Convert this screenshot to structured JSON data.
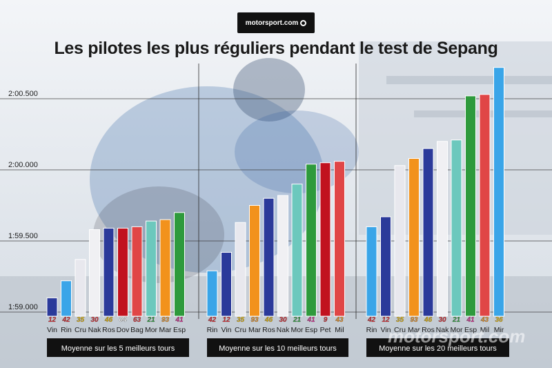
{
  "brand": {
    "logo_text": "motorsport.com",
    "watermark": "motorsport.com"
  },
  "chart_data": {
    "type": "bar",
    "title": "Les pilotes les plus réguliers pendant le test de Sepang",
    "xlabel": "",
    "ylabel": "",
    "y_unit": "seconds",
    "ylim": [
      119.0,
      120.5
    ],
    "y_ticks": [
      {
        "value": 119.0,
        "label": "1:59.000"
      },
      {
        "value": 119.5,
        "label": "1:59.500"
      },
      {
        "value": 120.0,
        "label": "2:00.000"
      },
      {
        "value": 120.5,
        "label": "2:00.500"
      }
    ],
    "groups": [
      {
        "caption": "Moyenne sur les 5 meilleurs tours",
        "bars": [
          {
            "label": "Vin",
            "number": "12",
            "value": 119.1,
            "color": "#2b3a9a",
            "num_color": "#d8262c"
          },
          {
            "label": "Rin",
            "number": "42",
            "value": 119.22,
            "color": "#3aa5e8",
            "num_color": "#d8262c"
          },
          {
            "label": "Cru",
            "number": "35",
            "value": 119.37,
            "color": "#e8e8ee",
            "num_color": "#e6b400"
          },
          {
            "label": "Nak",
            "number": "30",
            "value": 119.58,
            "color": "#f0f0f3",
            "num_color": "#d8262c"
          },
          {
            "label": "Ros",
            "number": "46",
            "value": 119.59,
            "color": "#2b3a9a",
            "num_color": "#e6b400"
          },
          {
            "label": "Dov",
            "number": "04",
            "value": 119.59,
            "color": "#c1121f",
            "num_color": "#ffffff"
          },
          {
            "label": "Bag",
            "number": "63",
            "value": 119.6,
            "color": "#e04646",
            "num_color": "#d8262c"
          },
          {
            "label": "Mor",
            "number": "21",
            "value": 119.64,
            "color": "#6cc8bd",
            "num_color": "#2e9a3c"
          },
          {
            "label": "Mar",
            "number": "93",
            "value": 119.65,
            "color": "#f2921c",
            "num_color": "#f2921c"
          },
          {
            "label": "Esp",
            "number": "41",
            "value": 119.7,
            "color": "#2e9a3c",
            "num_color": "#d42b8e"
          }
        ]
      },
      {
        "caption": "Moyenne sur les 10 meilleurs tours",
        "bars": [
          {
            "label": "Rin",
            "number": "42",
            "value": 119.29,
            "color": "#3aa5e8",
            "num_color": "#d8262c"
          },
          {
            "label": "Vin",
            "number": "12",
            "value": 119.42,
            "color": "#2b3a9a",
            "num_color": "#d8262c"
          },
          {
            "label": "Cru",
            "number": "35",
            "value": 119.63,
            "color": "#e8e8ee",
            "num_color": "#e6b400"
          },
          {
            "label": "Mar",
            "number": "93",
            "value": 119.75,
            "color": "#f2921c",
            "num_color": "#f2921c"
          },
          {
            "label": "Ros",
            "number": "46",
            "value": 119.8,
            "color": "#2b3a9a",
            "num_color": "#e6b400"
          },
          {
            "label": "Nak",
            "number": "30",
            "value": 119.82,
            "color": "#f0f0f3",
            "num_color": "#d8262c"
          },
          {
            "label": "Mor",
            "number": "21",
            "value": 119.9,
            "color": "#6cc8bd",
            "num_color": "#2e9a3c"
          },
          {
            "label": "Esp",
            "number": "41",
            "value": 120.04,
            "color": "#2e9a3c",
            "num_color": "#d42b8e"
          },
          {
            "label": "Pet",
            "number": "9",
            "value": 120.05,
            "color": "#c1121f",
            "num_color": "#d8262c"
          },
          {
            "label": "Mil",
            "number": "43",
            "value": 120.06,
            "color": "#e04646",
            "num_color": "#f2921c"
          }
        ]
      },
      {
        "caption": "Moyenne sur les 20 meilleurs tours",
        "bars": [
          {
            "label": "Rin",
            "number": "42",
            "value": 119.6,
            "color": "#3aa5e8",
            "num_color": "#d8262c"
          },
          {
            "label": "Vin",
            "number": "12",
            "value": 119.67,
            "color": "#2b3a9a",
            "num_color": "#d8262c"
          },
          {
            "label": "Cru",
            "number": "35",
            "value": 120.03,
            "color": "#e8e8ee",
            "num_color": "#e6b400"
          },
          {
            "label": "Mar",
            "number": "93",
            "value": 120.08,
            "color": "#f2921c",
            "num_color": "#f2921c"
          },
          {
            "label": "Ros",
            "number": "46",
            "value": 120.15,
            "color": "#2b3a9a",
            "num_color": "#e6b400"
          },
          {
            "label": "Nak",
            "number": "30",
            "value": 120.2,
            "color": "#f0f0f3",
            "num_color": "#d8262c"
          },
          {
            "label": "Mor",
            "number": "21",
            "value": 120.21,
            "color": "#6cc8bd",
            "num_color": "#2e9a3c"
          },
          {
            "label": "Esp",
            "number": "41",
            "value": 120.52,
            "color": "#2e9a3c",
            "num_color": "#d42b8e"
          },
          {
            "label": "Mil",
            "number": "43",
            "value": 120.53,
            "color": "#e04646",
            "num_color": "#f2921c"
          },
          {
            "label": "Mir",
            "number": "36",
            "value": 120.72,
            "color": "#3aa5e8",
            "num_color": "#e6b400"
          }
        ]
      }
    ]
  }
}
